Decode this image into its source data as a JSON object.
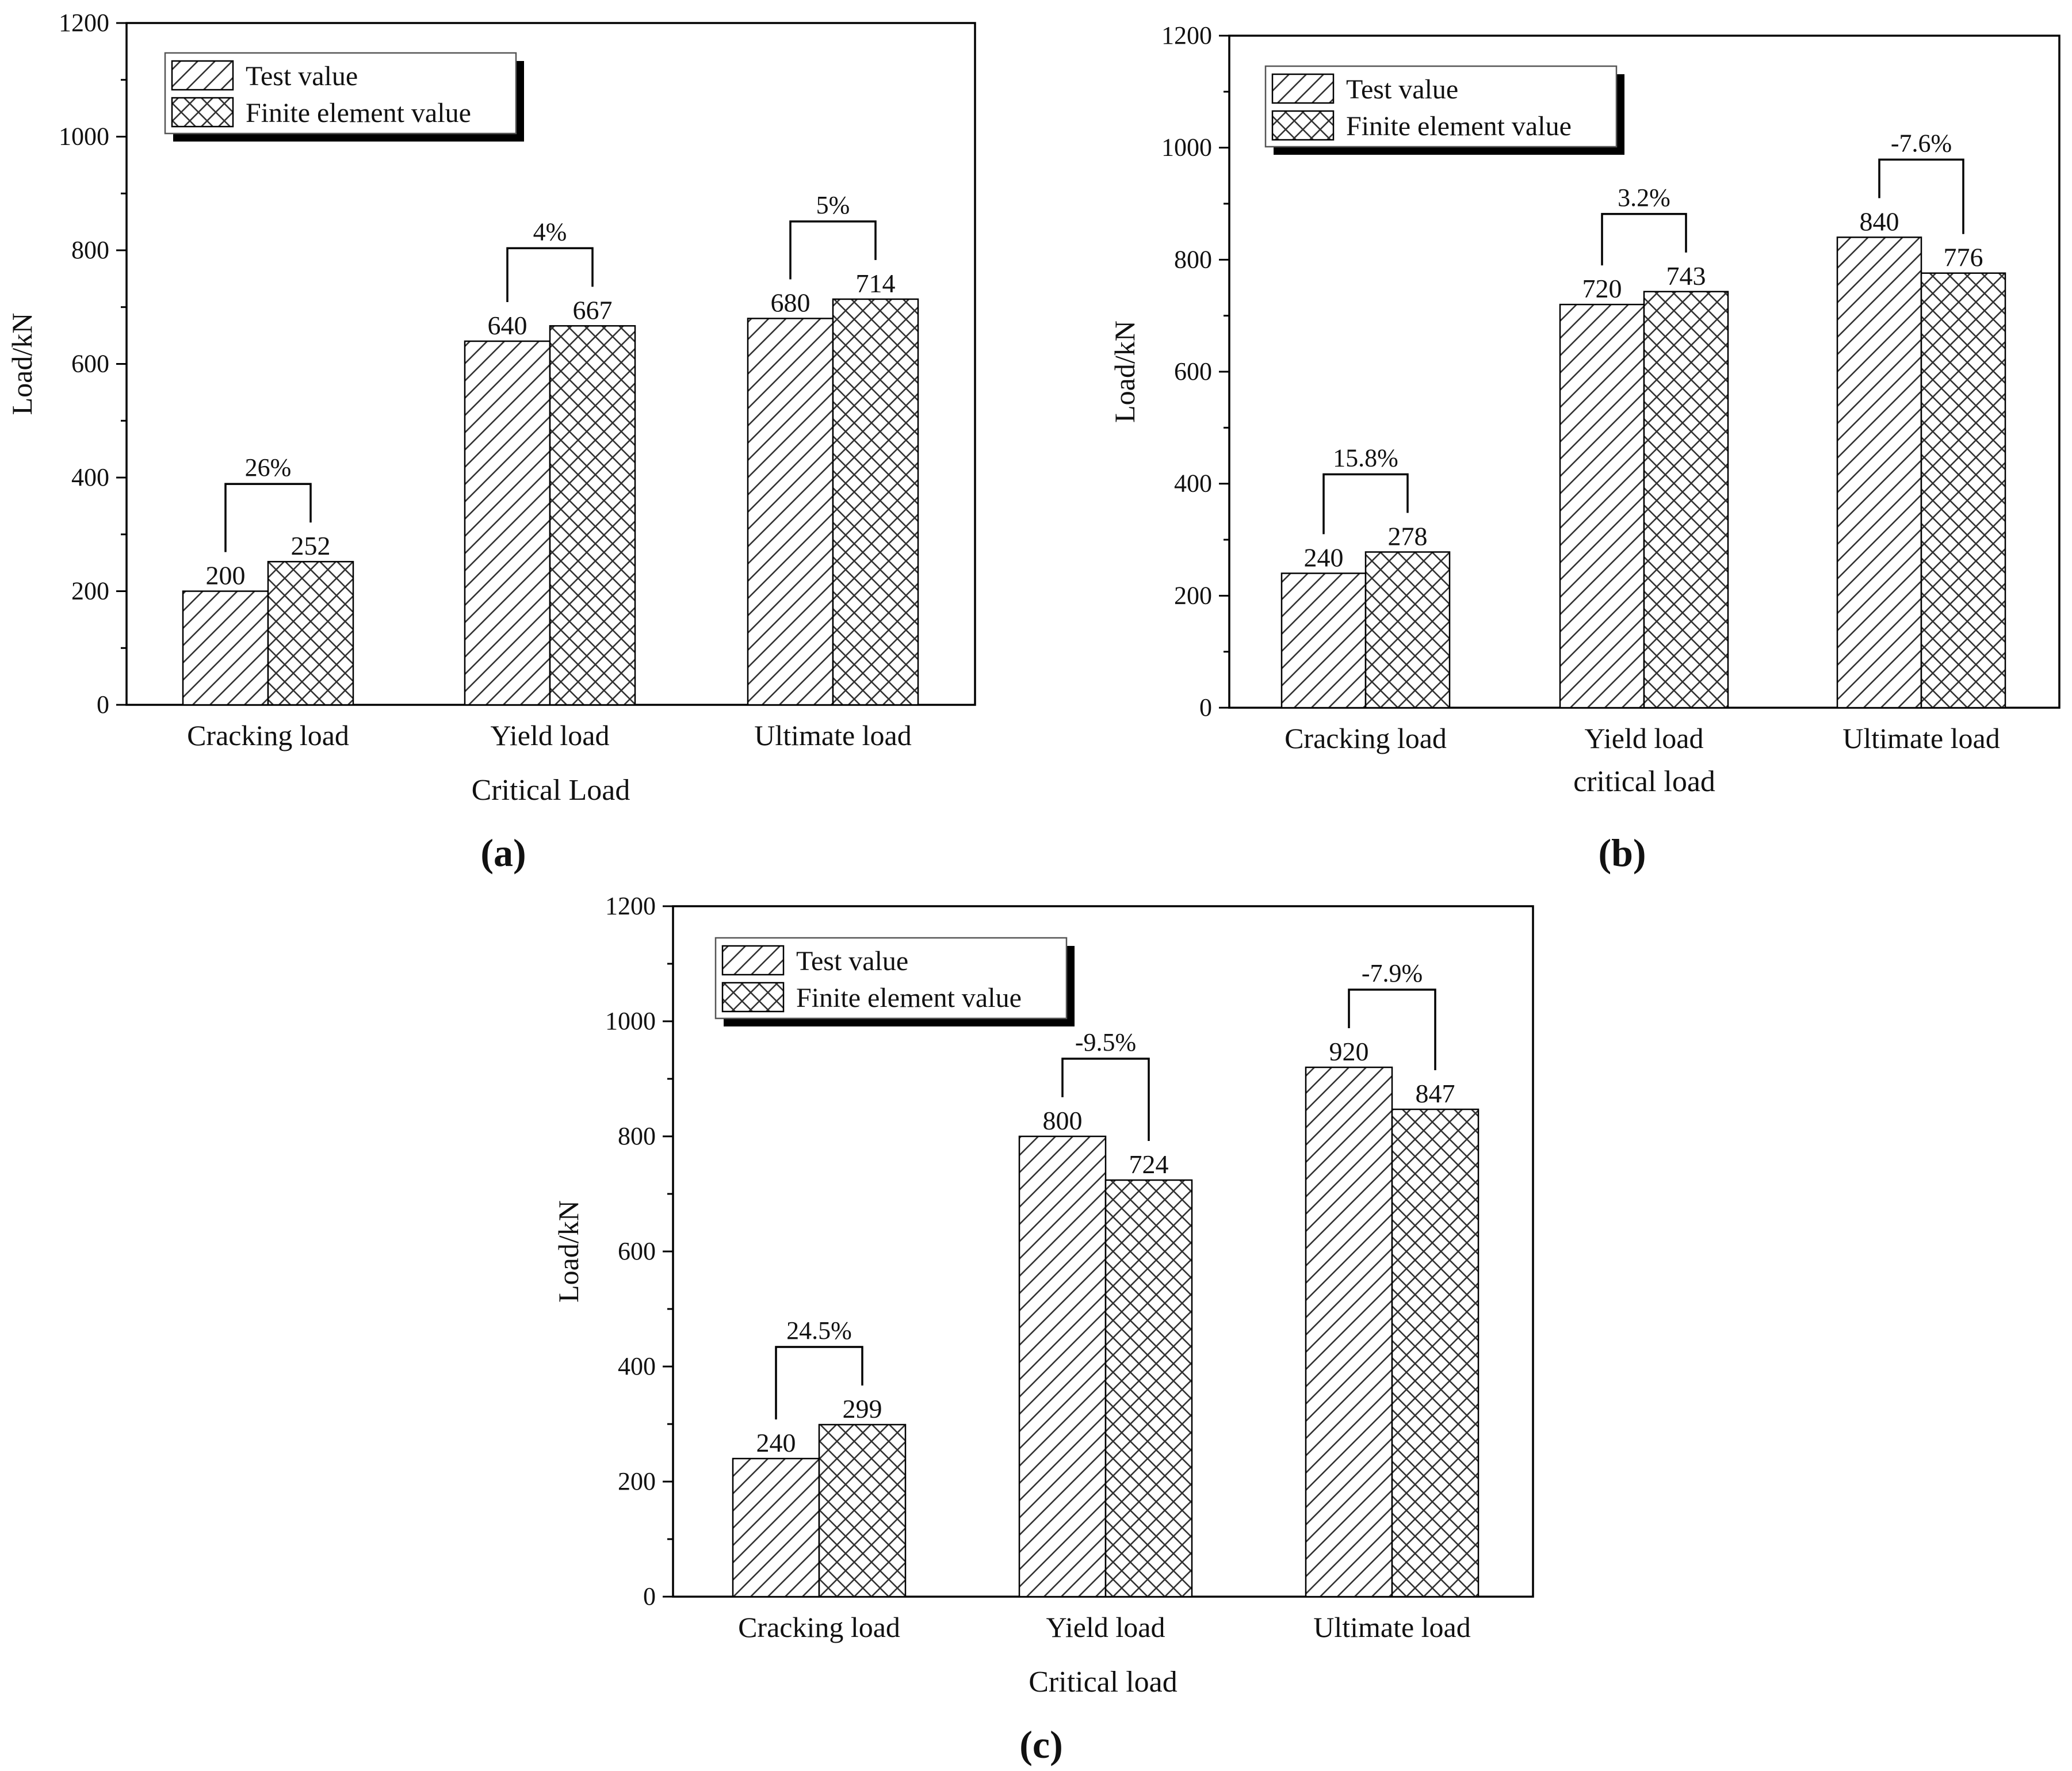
{
  "legend": {
    "test_label": "Test value",
    "fe_label": "Finite element value"
  },
  "colors": {
    "axis": "#000000",
    "bar_stroke": "#000000",
    "hatch": "#333333",
    "text": "#111111",
    "background": "#ffffff"
  },
  "chart_data": [
    {
      "panel": "(a)",
      "type": "bar",
      "title": "",
      "xlabel": "Critical Load",
      "ylabel": "Load/kN",
      "ylim": [
        0,
        1200
      ],
      "yticks": [
        0,
        200,
        400,
        600,
        800,
        1000,
        1200
      ],
      "categories": [
        "Cracking load",
        "Yield load",
        "Ultimate load"
      ],
      "series": [
        {
          "name": "Test value",
          "values": [
            200,
            640,
            680
          ]
        },
        {
          "name": "Finite element value",
          "values": [
            252,
            667,
            714
          ]
        }
      ],
      "value_labels": [
        [
          "200",
          "640",
          "680"
        ],
        [
          "252",
          "667",
          "714"
        ]
      ],
      "annotations": [
        "26%",
        "4%",
        "5%"
      ],
      "legend_position": "top-left"
    },
    {
      "panel": "(b)",
      "type": "bar",
      "title": "",
      "xlabel": "critical load",
      "ylabel": "Load/kN",
      "ylim": [
        0,
        1200
      ],
      "yticks": [
        0,
        200,
        400,
        600,
        800,
        1000,
        1200
      ],
      "categories": [
        "Cracking load",
        "Yield load",
        "Ultimate load"
      ],
      "series": [
        {
          "name": "Test value",
          "values": [
            240,
            720,
            840
          ]
        },
        {
          "name": "Finite element value",
          "values": [
            278,
            743,
            776
          ]
        }
      ],
      "value_labels": [
        [
          "240",
          "720",
          "840"
        ],
        [
          "278",
          "743",
          "776"
        ]
      ],
      "annotations": [
        "15.8%",
        "3.2%",
        "-7.6%"
      ],
      "legend_position": "top-left"
    },
    {
      "panel": "(c)",
      "type": "bar",
      "title": "",
      "xlabel": "Critical load",
      "ylabel": "Load/kN",
      "ylim": [
        0,
        1200
      ],
      "yticks": [
        0,
        200,
        400,
        600,
        800,
        1000,
        1200
      ],
      "categories": [
        "Cracking load",
        "Yield load",
        "Ultimate load"
      ],
      "series": [
        {
          "name": "Test value",
          "values": [
            240,
            800,
            920
          ]
        },
        {
          "name": "Finite element value",
          "values": [
            299,
            724,
            847
          ]
        }
      ],
      "value_labels": [
        [
          "240",
          "800",
          "920"
        ],
        [
          "299",
          "724",
          "847"
        ]
      ],
      "annotations": [
        "24.5%",
        "-9.5%",
        "-7.9%"
      ],
      "legend_position": "top-left"
    }
  ]
}
